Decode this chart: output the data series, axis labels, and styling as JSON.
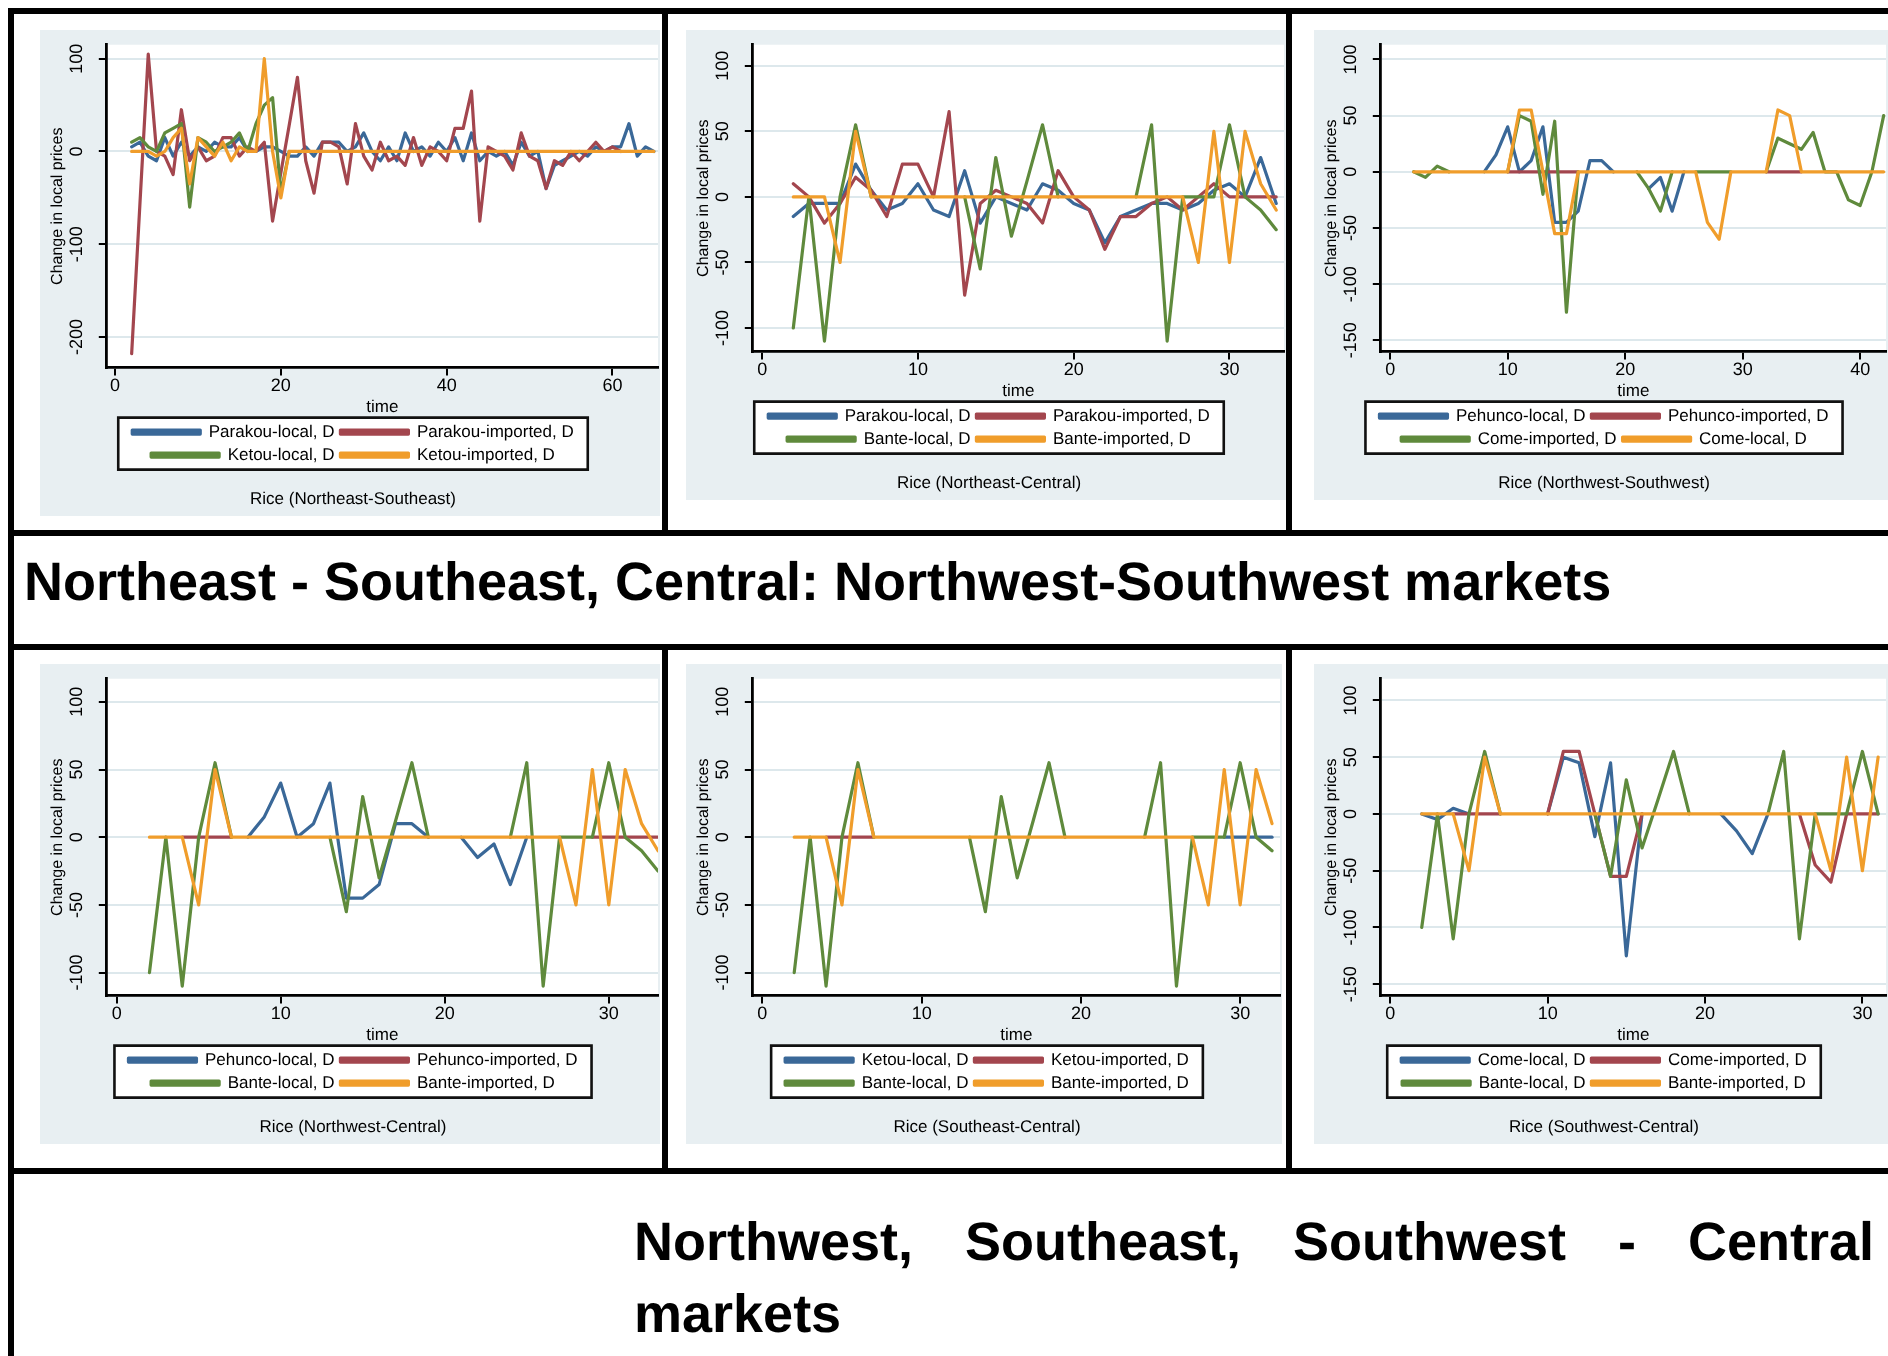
{
  "chart_data": [
    {
      "type": "line",
      "title": "Rice (Northeast-Southeast)",
      "xlabel": "time",
      "ylabel": "Change in local prices",
      "legend": "bottom",
      "grid": "y",
      "x": [
        2,
        3,
        4,
        5,
        6,
        7,
        8,
        9,
        10,
        11,
        12,
        13,
        14,
        15,
        16,
        17,
        18,
        19,
        20,
        21,
        22,
        23,
        24,
        25,
        26,
        27,
        28,
        29,
        30,
        31,
        32,
        33,
        34,
        35,
        36,
        37,
        38,
        39,
        40,
        41,
        42,
        43,
        44,
        45,
        46,
        47,
        48,
        49,
        50,
        51,
        52,
        53,
        54,
        55,
        56,
        57,
        58,
        59,
        60,
        61,
        62,
        63,
        64,
        65
      ],
      "xlim": [
        -1,
        65.5
      ],
      "xticks": [
        0,
        20,
        40,
        60
      ],
      "ylim": [
        -233,
        115
      ],
      "yticks": [
        -200,
        -100,
        0,
        100
      ],
      "series": [
        {
          "name": "Parakou-local, D",
          "color": "#3a6898",
          "values": [
            5,
            10,
            -5,
            -10,
            15,
            -5,
            10,
            -5,
            5,
            0,
            10,
            5,
            5,
            15,
            0,
            0,
            5,
            5,
            0,
            -5,
            -5,
            5,
            -5,
            10,
            10,
            10,
            0,
            5,
            20,
            0,
            -10,
            5,
            -10,
            20,
            0,
            5,
            -5,
            10,
            0,
            15,
            -10,
            20,
            -10,
            0,
            -5,
            0,
            -15,
            10,
            -5,
            0,
            -40,
            -15,
            -10,
            -5,
            0,
            -5,
            5,
            0,
            5,
            5,
            30,
            -5,
            5,
            0
          ]
        },
        {
          "name": "Parakou-imported, D",
          "color": "#a3464e",
          "values": [
            -218,
            -56,
            105,
            0,
            -5,
            -25,
            45,
            -10,
            5,
            -10,
            -5,
            15,
            15,
            -5,
            5,
            0,
            10,
            -75,
            -23,
            28,
            80,
            -10,
            -45,
            10,
            10,
            5,
            -35,
            30,
            -5,
            -20,
            10,
            -10,
            -5,
            -15,
            15,
            -15,
            5,
            0,
            -10,
            25,
            25,
            65,
            -75,
            5,
            0,
            -5,
            -20,
            20,
            -5,
            -10,
            -40,
            -10,
            -15,
            0,
            -10,
            0,
            10,
            0,
            5,
            0,
            null,
            null,
            null,
            null
          ]
        },
        {
          "name": "Ketou-local, D",
          "color": "#5f8a3c",
          "values": [
            10,
            15,
            5,
            0,
            20,
            25,
            30,
            -60,
            15,
            10,
            0,
            5,
            10,
            20,
            0,
            30,
            50,
            58,
            -45,
            0,
            null,
            null,
            null,
            null,
            null,
            null,
            null,
            null,
            null,
            null,
            null,
            null,
            null,
            null,
            null,
            null,
            null,
            null,
            null,
            null,
            null,
            null,
            null,
            null,
            null,
            null,
            null,
            null,
            null,
            null,
            null,
            null,
            null,
            null,
            null,
            null,
            null,
            null,
            null,
            null,
            null,
            null,
            null,
            null
          ]
        },
        {
          "name": "Ketou-imported, D",
          "color": "#f09d2b",
          "values": [
            0,
            0,
            0,
            -5,
            0,
            15,
            25,
            -35,
            15,
            5,
            -5,
            10,
            -10,
            5,
            0,
            0,
            100,
            0,
            -50,
            0,
            0,
            0,
            0,
            0,
            0,
            0,
            0,
            0,
            0,
            0,
            0,
            0,
            0,
            0,
            0,
            0,
            0,
            0,
            0,
            0,
            0,
            0,
            0,
            0,
            0,
            0,
            0,
            0,
            0,
            0,
            0,
            0,
            0,
            0,
            0,
            0,
            0,
            0,
            0,
            0,
            0,
            0,
            0,
            0
          ]
        }
      ]
    },
    {
      "type": "line",
      "title": "Rice (Northeast-Central)",
      "xlabel": "time",
      "ylabel": "Change in local prices",
      "legend": "bottom",
      "grid": "y",
      "x": [
        2,
        3,
        4,
        5,
        6,
        7,
        8,
        9,
        10,
        11,
        12,
        13,
        14,
        15,
        16,
        17,
        18,
        19,
        20,
        21,
        22,
        23,
        24,
        25,
        26,
        27,
        28,
        29,
        30,
        31,
        32,
        33
      ],
      "xlim": [
        -0.6,
        33.5
      ],
      "xticks": [
        0,
        10,
        20,
        30
      ],
      "ylim": [
        -118,
        116
      ],
      "yticks": [
        -100,
        -50,
        0,
        50,
        100
      ],
      "series": [
        {
          "name": "Parakou-local, D",
          "color": "#3a6898",
          "values": [
            -15,
            -5,
            -5,
            -5,
            25,
            5,
            -10,
            -5,
            10,
            -10,
            -15,
            20,
            -20,
            0,
            -5,
            -10,
            10,
            5,
            -5,
            -10,
            -35,
            -15,
            -10,
            -5,
            -5,
            -10,
            -5,
            5,
            10,
            0,
            30,
            -5
          ]
        },
        {
          "name": "Parakou-imported, D",
          "color": "#a3464e",
          "values": [
            10,
            0,
            -20,
            -5,
            15,
            5,
            -15,
            25,
            25,
            0,
            65,
            -75,
            -5,
            5,
            0,
            -5,
            -20,
            20,
            0,
            -10,
            -40,
            -15,
            -15,
            -5,
            0,
            -10,
            0,
            10,
            0,
            0,
            0,
            0
          ]
        },
        {
          "name": "Bante-local, D",
          "color": "#5f8a3c",
          "values": [
            -100,
            0,
            -110,
            0,
            55,
            0,
            null,
            null,
            null,
            null,
            null,
            0,
            -55,
            30,
            -30,
            12,
            55,
            0,
            null,
            null,
            null,
            null,
            0,
            55,
            -110,
            0,
            0,
            0,
            55,
            0,
            -10,
            -25
          ]
        },
        {
          "name": "Bante-imported, D",
          "color": "#f09d2b",
          "values": [
            0,
            0,
            0,
            -50,
            50,
            0,
            0,
            0,
            0,
            0,
            0,
            0,
            0,
            0,
            0,
            0,
            0,
            0,
            0,
            0,
            0,
            0,
            0,
            0,
            0,
            0,
            -50,
            50,
            -50,
            50,
            10,
            -10
          ]
        }
      ]
    },
    {
      "type": "line",
      "title": "Rice (Northwest-Southwest)",
      "xlabel": "time",
      "ylabel": "Change in local prices",
      "legend": "bottom",
      "grid": "y",
      "x": [
        2,
        3,
        4,
        5,
        6,
        7,
        8,
        9,
        10,
        11,
        12,
        13,
        14,
        15,
        16,
        17,
        18,
        19,
        20,
        21,
        22,
        23,
        24,
        25,
        26,
        27,
        28,
        29,
        30,
        31,
        32,
        33,
        34,
        35,
        36,
        37,
        38,
        39,
        40,
        41,
        42
      ],
      "xlim": [
        -0.8,
        42.2
      ],
      "xticks": [
        0,
        10,
        20,
        30,
        40
      ],
      "ylim": [
        -160,
        113
      ],
      "yticks": [
        -150,
        -100,
        -50,
        0,
        50,
        100
      ],
      "series": [
        {
          "name": "Pehunco-local, D",
          "color": "#3a6898",
          "values": [
            null,
            null,
            null,
            null,
            null,
            null,
            0,
            15,
            40,
            0,
            10,
            40,
            -45,
            -45,
            -35,
            10,
            10,
            0,
            null,
            null,
            -15,
            -5,
            -35,
            0,
            null,
            null,
            null,
            null,
            null,
            null,
            null,
            null,
            null,
            null,
            null,
            null,
            null,
            null,
            null,
            null,
            null
          ]
        },
        {
          "name": "Pehunco-imported, D",
          "color": "#a3464e",
          "values": [
            null,
            null,
            null,
            null,
            null,
            null,
            null,
            null,
            0,
            0,
            0,
            0,
            0,
            0,
            0,
            null,
            null,
            null,
            null,
            null,
            null,
            null,
            null,
            null,
            null,
            null,
            null,
            null,
            null,
            null,
            0,
            0,
            0,
            0,
            null,
            null,
            null,
            null,
            null,
            null,
            null
          ]
        },
        {
          "name": "Come-imported, D",
          "color": "#5f8a3c",
          "values": [
            0,
            -5,
            5,
            0,
            null,
            null,
            null,
            null,
            0,
            50,
            45,
            -20,
            45,
            -125,
            0,
            null,
            null,
            null,
            null,
            0,
            -15,
            -35,
            0,
            null,
            0,
            0,
            0,
            0,
            null,
            null,
            0,
            30,
            25,
            20,
            35,
            0,
            0,
            -25,
            -30,
            0,
            50
          ]
        },
        {
          "name": "Come-local, D",
          "color": "#f09d2b",
          "values": [
            0,
            0,
            0,
            0,
            0,
            0,
            0,
            0,
            0,
            55,
            55,
            0,
            -55,
            -55,
            0,
            0,
            0,
            0,
            0,
            0,
            0,
            0,
            0,
            0,
            0,
            -45,
            -60,
            0,
            0,
            0,
            0,
            55,
            50,
            0,
            0,
            0,
            0,
            0,
            0,
            0,
            0
          ]
        }
      ]
    },
    {
      "type": "other",
      "title": "Northeast - Southeast, Central: Northwest-Southwest markets"
    },
    {
      "type": "line",
      "title": "Rice (Northwest-Central)",
      "xlabel": "time",
      "ylabel": "Change in local prices",
      "legend": "bottom",
      "grid": "y",
      "x": [
        2,
        3,
        4,
        5,
        6,
        7,
        8,
        9,
        10,
        11,
        12,
        13,
        14,
        15,
        16,
        17,
        18,
        19,
        20,
        21,
        22,
        23,
        24,
        25,
        26,
        27,
        28,
        29,
        30,
        31,
        32,
        33
      ],
      "xlim": [
        -0.6,
        33
      ],
      "xticks": [
        0,
        10,
        20,
        30
      ],
      "ylim": [
        -117,
        117
      ],
      "yticks": [
        -100,
        -50,
        0,
        50,
        100
      ],
      "series": [
        {
          "name": "Pehunco-local, D",
          "color": "#3a6898",
          "values": [
            null,
            null,
            null,
            null,
            null,
            null,
            0,
            15,
            40,
            0,
            10,
            40,
            -45,
            -45,
            -35,
            10,
            10,
            0,
            null,
            0,
            -15,
            -5,
            -35,
            0,
            null,
            null,
            null,
            null,
            null,
            null,
            null,
            null
          ]
        },
        {
          "name": "Pehunco-imported, D",
          "color": "#a3464e",
          "values": [
            null,
            null,
            0,
            0,
            0,
            0,
            null,
            null,
            null,
            null,
            null,
            null,
            null,
            null,
            null,
            null,
            null,
            null,
            null,
            null,
            null,
            null,
            null,
            null,
            null,
            null,
            null,
            0,
            0,
            0,
            0,
            0
          ]
        },
        {
          "name": "Bante-local, D",
          "color": "#5f8a3c",
          "values": [
            -100,
            0,
            -110,
            0,
            55,
            0,
            null,
            null,
            null,
            null,
            null,
            0,
            -55,
            30,
            -30,
            12,
            55,
            0,
            null,
            null,
            null,
            null,
            0,
            55,
            -110,
            0,
            0,
            0,
            55,
            0,
            -10,
            -25
          ]
        },
        {
          "name": "Bante-imported, D",
          "color": "#f09d2b",
          "values": [
            0,
            0,
            0,
            -50,
            50,
            0,
            0,
            0,
            0,
            0,
            0,
            0,
            0,
            0,
            0,
            0,
            0,
            0,
            0,
            0,
            0,
            0,
            0,
            0,
            0,
            0,
            -50,
            50,
            -50,
            50,
            10,
            -10
          ]
        }
      ]
    },
    {
      "type": "line",
      "title": "Rice (Southeast-Central)",
      "xlabel": "time",
      "ylabel": "Change in local prices",
      "legend": "bottom",
      "grid": "y",
      "x": [
        2,
        3,
        4,
        5,
        6,
        7,
        8,
        9,
        10,
        11,
        12,
        13,
        14,
        15,
        16,
        17,
        18,
        19,
        20,
        21,
        22,
        23,
        24,
        25,
        26,
        27,
        28,
        29,
        30,
        31,
        32
      ],
      "xlim": [
        -0.6,
        32.5
      ],
      "xticks": [
        0,
        10,
        20,
        30
      ],
      "ylim": [
        -117,
        117
      ],
      "yticks": [
        -100,
        -50,
        0,
        50,
        100
      ],
      "series": [
        {
          "name": "Ketou-local, D",
          "color": "#3a6898",
          "values": [
            null,
            null,
            null,
            null,
            null,
            null,
            null,
            null,
            null,
            null,
            null,
            null,
            null,
            null,
            null,
            null,
            null,
            null,
            null,
            null,
            null,
            null,
            null,
            null,
            null,
            null,
            null,
            0,
            0,
            0,
            0
          ]
        },
        {
          "name": "Ketou-imported, D",
          "color": "#a3464e",
          "values": [
            null,
            null,
            0,
            0,
            0,
            0,
            null,
            null,
            null,
            null,
            null,
            null,
            null,
            null,
            null,
            null,
            null,
            null,
            null,
            null,
            null,
            null,
            null,
            null,
            null,
            null,
            null,
            null,
            null,
            null,
            null
          ]
        },
        {
          "name": "Bante-local, D",
          "color": "#5f8a3c",
          "values": [
            -100,
            0,
            -110,
            0,
            55,
            0,
            null,
            null,
            null,
            null,
            null,
            0,
            -55,
            30,
            -30,
            12,
            55,
            0,
            null,
            null,
            null,
            null,
            0,
            55,
            -110,
            0,
            0,
            0,
            55,
            0,
            -10
          ]
        },
        {
          "name": "Bante-imported, D",
          "color": "#f09d2b",
          "values": [
            0,
            0,
            0,
            -50,
            50,
            0,
            0,
            0,
            0,
            0,
            0,
            0,
            0,
            0,
            0,
            0,
            0,
            0,
            0,
            0,
            0,
            0,
            0,
            0,
            0,
            0,
            -50,
            50,
            -50,
            50,
            10
          ]
        }
      ]
    },
    {
      "type": "line",
      "title": "Rice (Southwest-Central)",
      "xlabel": "time",
      "ylabel": "Change in local prices",
      "legend": "bottom",
      "grid": "y",
      "x": [
        2,
        3,
        4,
        5,
        6,
        7,
        8,
        9,
        10,
        11,
        12,
        13,
        14,
        15,
        16,
        17,
        18,
        19,
        20,
        21,
        22,
        23,
        24,
        25,
        26,
        27,
        28,
        29,
        30,
        31
      ],
      "xlim": [
        -0.6,
        31.5
      ],
      "xticks": [
        0,
        10,
        20,
        30
      ],
      "ylim": [
        -160,
        119
      ],
      "yticks": [
        -150,
        -100,
        -50,
        0,
        50,
        100
      ],
      "series": [
        {
          "name": "Come-local, D",
          "color": "#3a6898",
          "values": [
            0,
            -5,
            5,
            0,
            null,
            null,
            null,
            null,
            0,
            50,
            45,
            -20,
            45,
            -125,
            0,
            null,
            null,
            null,
            null,
            0,
            -15,
            -35,
            0,
            null,
            null,
            null,
            null,
            null,
            null,
            null
          ]
        },
        {
          "name": "Come-imported, D",
          "color": "#a3464e",
          "values": [
            null,
            null,
            0,
            0,
            0,
            0,
            null,
            null,
            0,
            55,
            55,
            0,
            -55,
            -55,
            0,
            null,
            null,
            null,
            null,
            null,
            null,
            null,
            null,
            null,
            0,
            -45,
            -60,
            0,
            0,
            0
          ]
        },
        {
          "name": "Bante-local, D",
          "color": "#5f8a3c",
          "values": [
            -100,
            0,
            -110,
            0,
            55,
            0,
            null,
            null,
            null,
            null,
            null,
            0,
            -55,
            30,
            -30,
            12,
            55,
            0,
            null,
            null,
            null,
            null,
            0,
            55,
            -110,
            0,
            0,
            0,
            55,
            0
          ]
        },
        {
          "name": "Bante-imported, D",
          "color": "#f09d2b",
          "values": [
            0,
            0,
            0,
            -50,
            50,
            0,
            0,
            0,
            0,
            0,
            0,
            0,
            0,
            0,
            0,
            0,
            0,
            0,
            0,
            0,
            0,
            0,
            0,
            0,
            0,
            0,
            -50,
            50,
            -50,
            50
          ]
        }
      ]
    },
    {
      "type": "other",
      "title": "Northwest, Southeast, Southwest - Central markets"
    }
  ]
}
